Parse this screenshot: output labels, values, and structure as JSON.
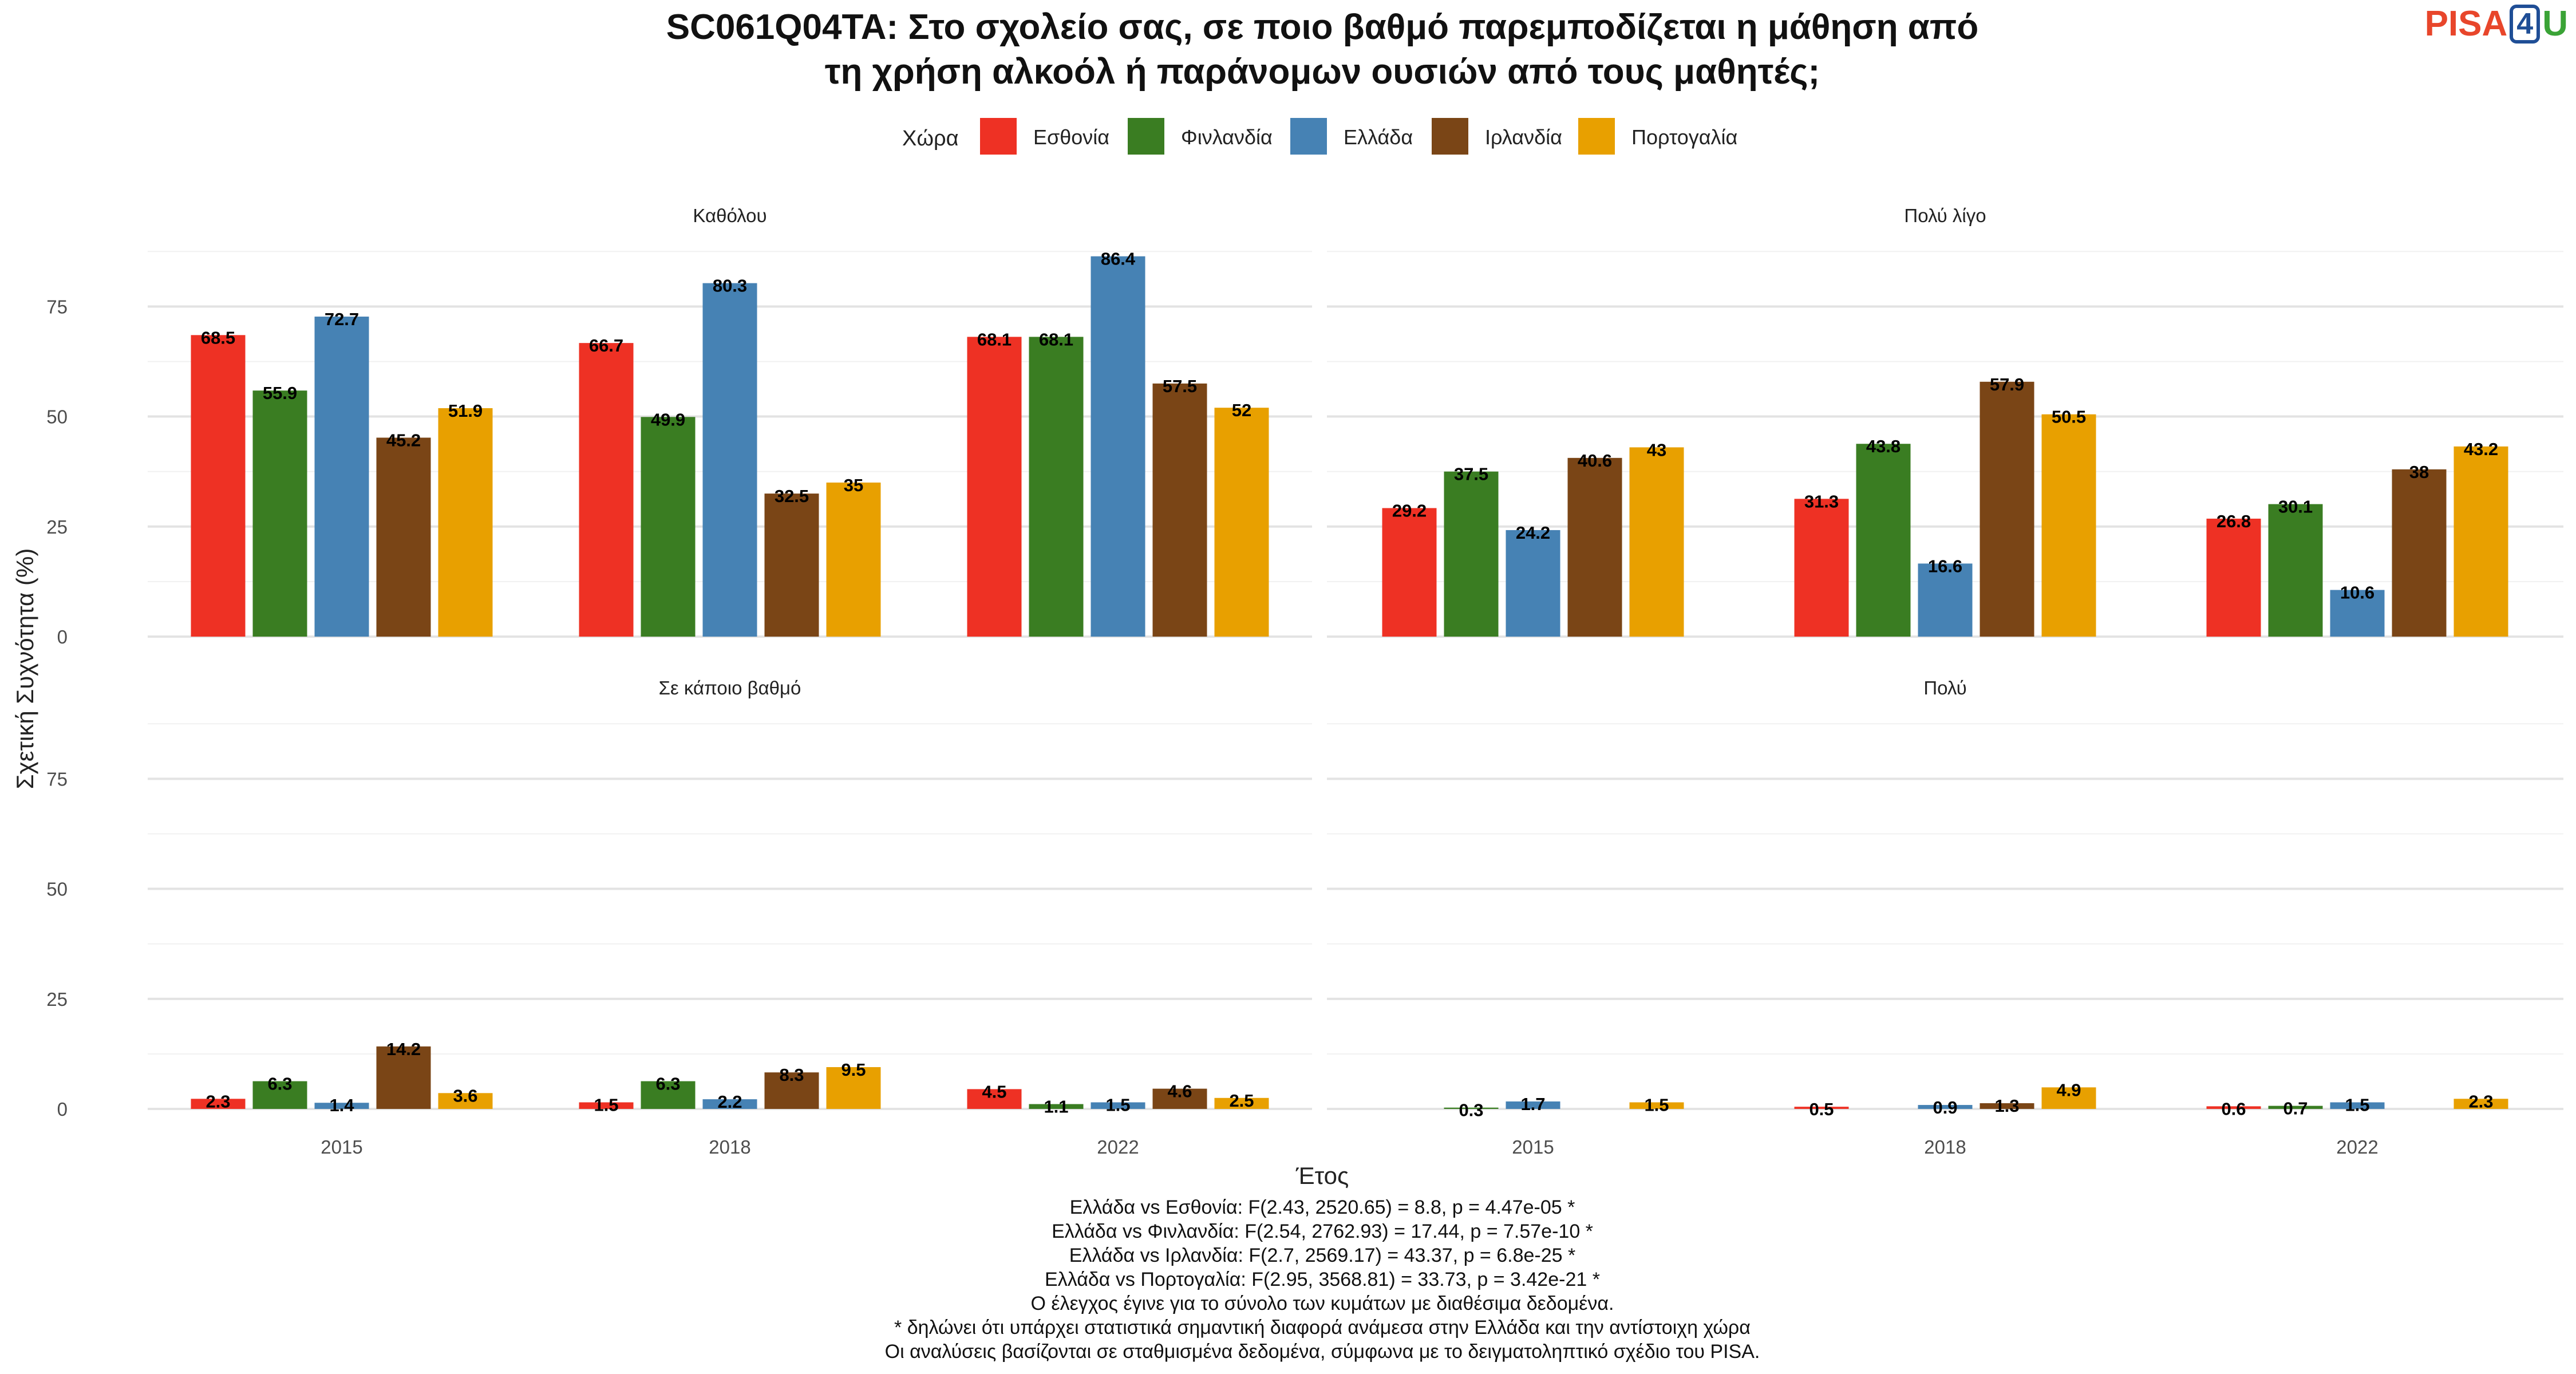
{
  "title_lines": [
    "SC061Q04TA: Στο σχολείο σας, σε ποιο βαθμό παρεμποδίζεται η μάθηση από",
    "τη χρήση αλκοόλ ή παράνομων ουσιών από τους μαθητές;"
  ],
  "logo": {
    "part1": "PISA",
    "part2": "4",
    "part3": "U"
  },
  "legend_title": "Χώρα",
  "colors": {
    "Εσθονία": "#EE3124",
    "Φινλανδία": "#3A7D22",
    "Ελλάδα": "#4682B4",
    "Ιρλανδία": "#7A4516",
    "Πορτογαλία": "#E8A000"
  },
  "footnotes": [
    "Ελλάδα vs Εσθονία: F(2.43, 2520.65) = 8.8, p = 4.47e-05 *",
    "Ελλάδα vs Φινλανδία: F(2.54, 2762.93) = 17.44, p = 7.57e-10 *",
    "Ελλάδα vs Ιρλανδία: F(2.7, 2569.17) = 43.37, p = 6.8e-25 *",
    "Ελλάδα vs Πορτογαλία: F(2.95, 3568.81) = 33.73, p = 3.42e-21 *",
    "Ο έλεγχος έγινε για το σύνολο των κυμάτων με διαθέσιμα δεδομένα.",
    "* δηλώνει ότι υπάρχει στατιστικά σημαντική διαφορά ανάμεσα στην Ελλάδα και την αντίστοιχη χώρα",
    "Οι αναλύσεις βασίζονται σε σταθμισμένα δεδομένα, σύμφωνα με το δειγματοληπτικό σχέδιο του PISA."
  ],
  "chart_data": {
    "type": "bar",
    "xlabel": "Έτος",
    "ylabel": "Σχετική Συχνότητα (%)",
    "ylim": [
      0,
      90
    ],
    "yticks": [
      0,
      25,
      50,
      75
    ],
    "grid": true,
    "legend_position": "top",
    "categories": [
      "2015",
      "2018",
      "2022"
    ],
    "series_names": [
      "Εσθονία",
      "Φινλανδία",
      "Ελλάδα",
      "Ιρλανδία",
      "Πορτογαλία"
    ],
    "panels": [
      {
        "title": "Καθόλου",
        "series": [
          {
            "name": "Εσθονία",
            "values": [
              68.5,
              66.7,
              68.1
            ]
          },
          {
            "name": "Φινλανδία",
            "values": [
              55.9,
              49.9,
              68.1
            ]
          },
          {
            "name": "Ελλάδα",
            "values": [
              72.7,
              80.3,
              86.4
            ]
          },
          {
            "name": "Ιρλανδία",
            "values": [
              45.2,
              32.5,
              57.5
            ]
          },
          {
            "name": "Πορτογαλία",
            "values": [
              51.9,
              35,
              52
            ]
          }
        ]
      },
      {
        "title": "Πολύ λίγο",
        "series": [
          {
            "name": "Εσθονία",
            "values": [
              29.2,
              31.3,
              26.8
            ]
          },
          {
            "name": "Φινλανδία",
            "values": [
              37.5,
              43.8,
              30.1
            ]
          },
          {
            "name": "Ελλάδα",
            "values": [
              24.2,
              16.6,
              10.6
            ]
          },
          {
            "name": "Ιρλανδία",
            "values": [
              40.6,
              57.9,
              38
            ]
          },
          {
            "name": "Πορτογαλία",
            "values": [
              43,
              50.5,
              43.2
            ]
          }
        ]
      },
      {
        "title": "Σε κάποιο βαθμό",
        "series": [
          {
            "name": "Εσθονία",
            "values": [
              2.3,
              1.5,
              4.5
            ]
          },
          {
            "name": "Φινλανδία",
            "values": [
              6.3,
              6.3,
              1.1
            ]
          },
          {
            "name": "Ελλάδα",
            "values": [
              1.4,
              2.2,
              1.5
            ]
          },
          {
            "name": "Ιρλανδία",
            "values": [
              14.2,
              8.3,
              4.6
            ]
          },
          {
            "name": "Πορτογαλία",
            "values": [
              3.6,
              9.5,
              2.5
            ]
          }
        ]
      },
      {
        "title": "Πολύ",
        "series": [
          {
            "name": "Εσθονία",
            "values": [
              null,
              0.5,
              0.6
            ]
          },
          {
            "name": "Φινλανδία",
            "values": [
              0.3,
              null,
              0.7
            ]
          },
          {
            "name": "Ελλάδα",
            "values": [
              1.7,
              0.9,
              1.5
            ]
          },
          {
            "name": "Ιρλανδία",
            "values": [
              null,
              1.3,
              null
            ]
          },
          {
            "name": "Πορτογαλία",
            "values": [
              1.5,
              4.9,
              2.3
            ]
          }
        ]
      }
    ]
  }
}
